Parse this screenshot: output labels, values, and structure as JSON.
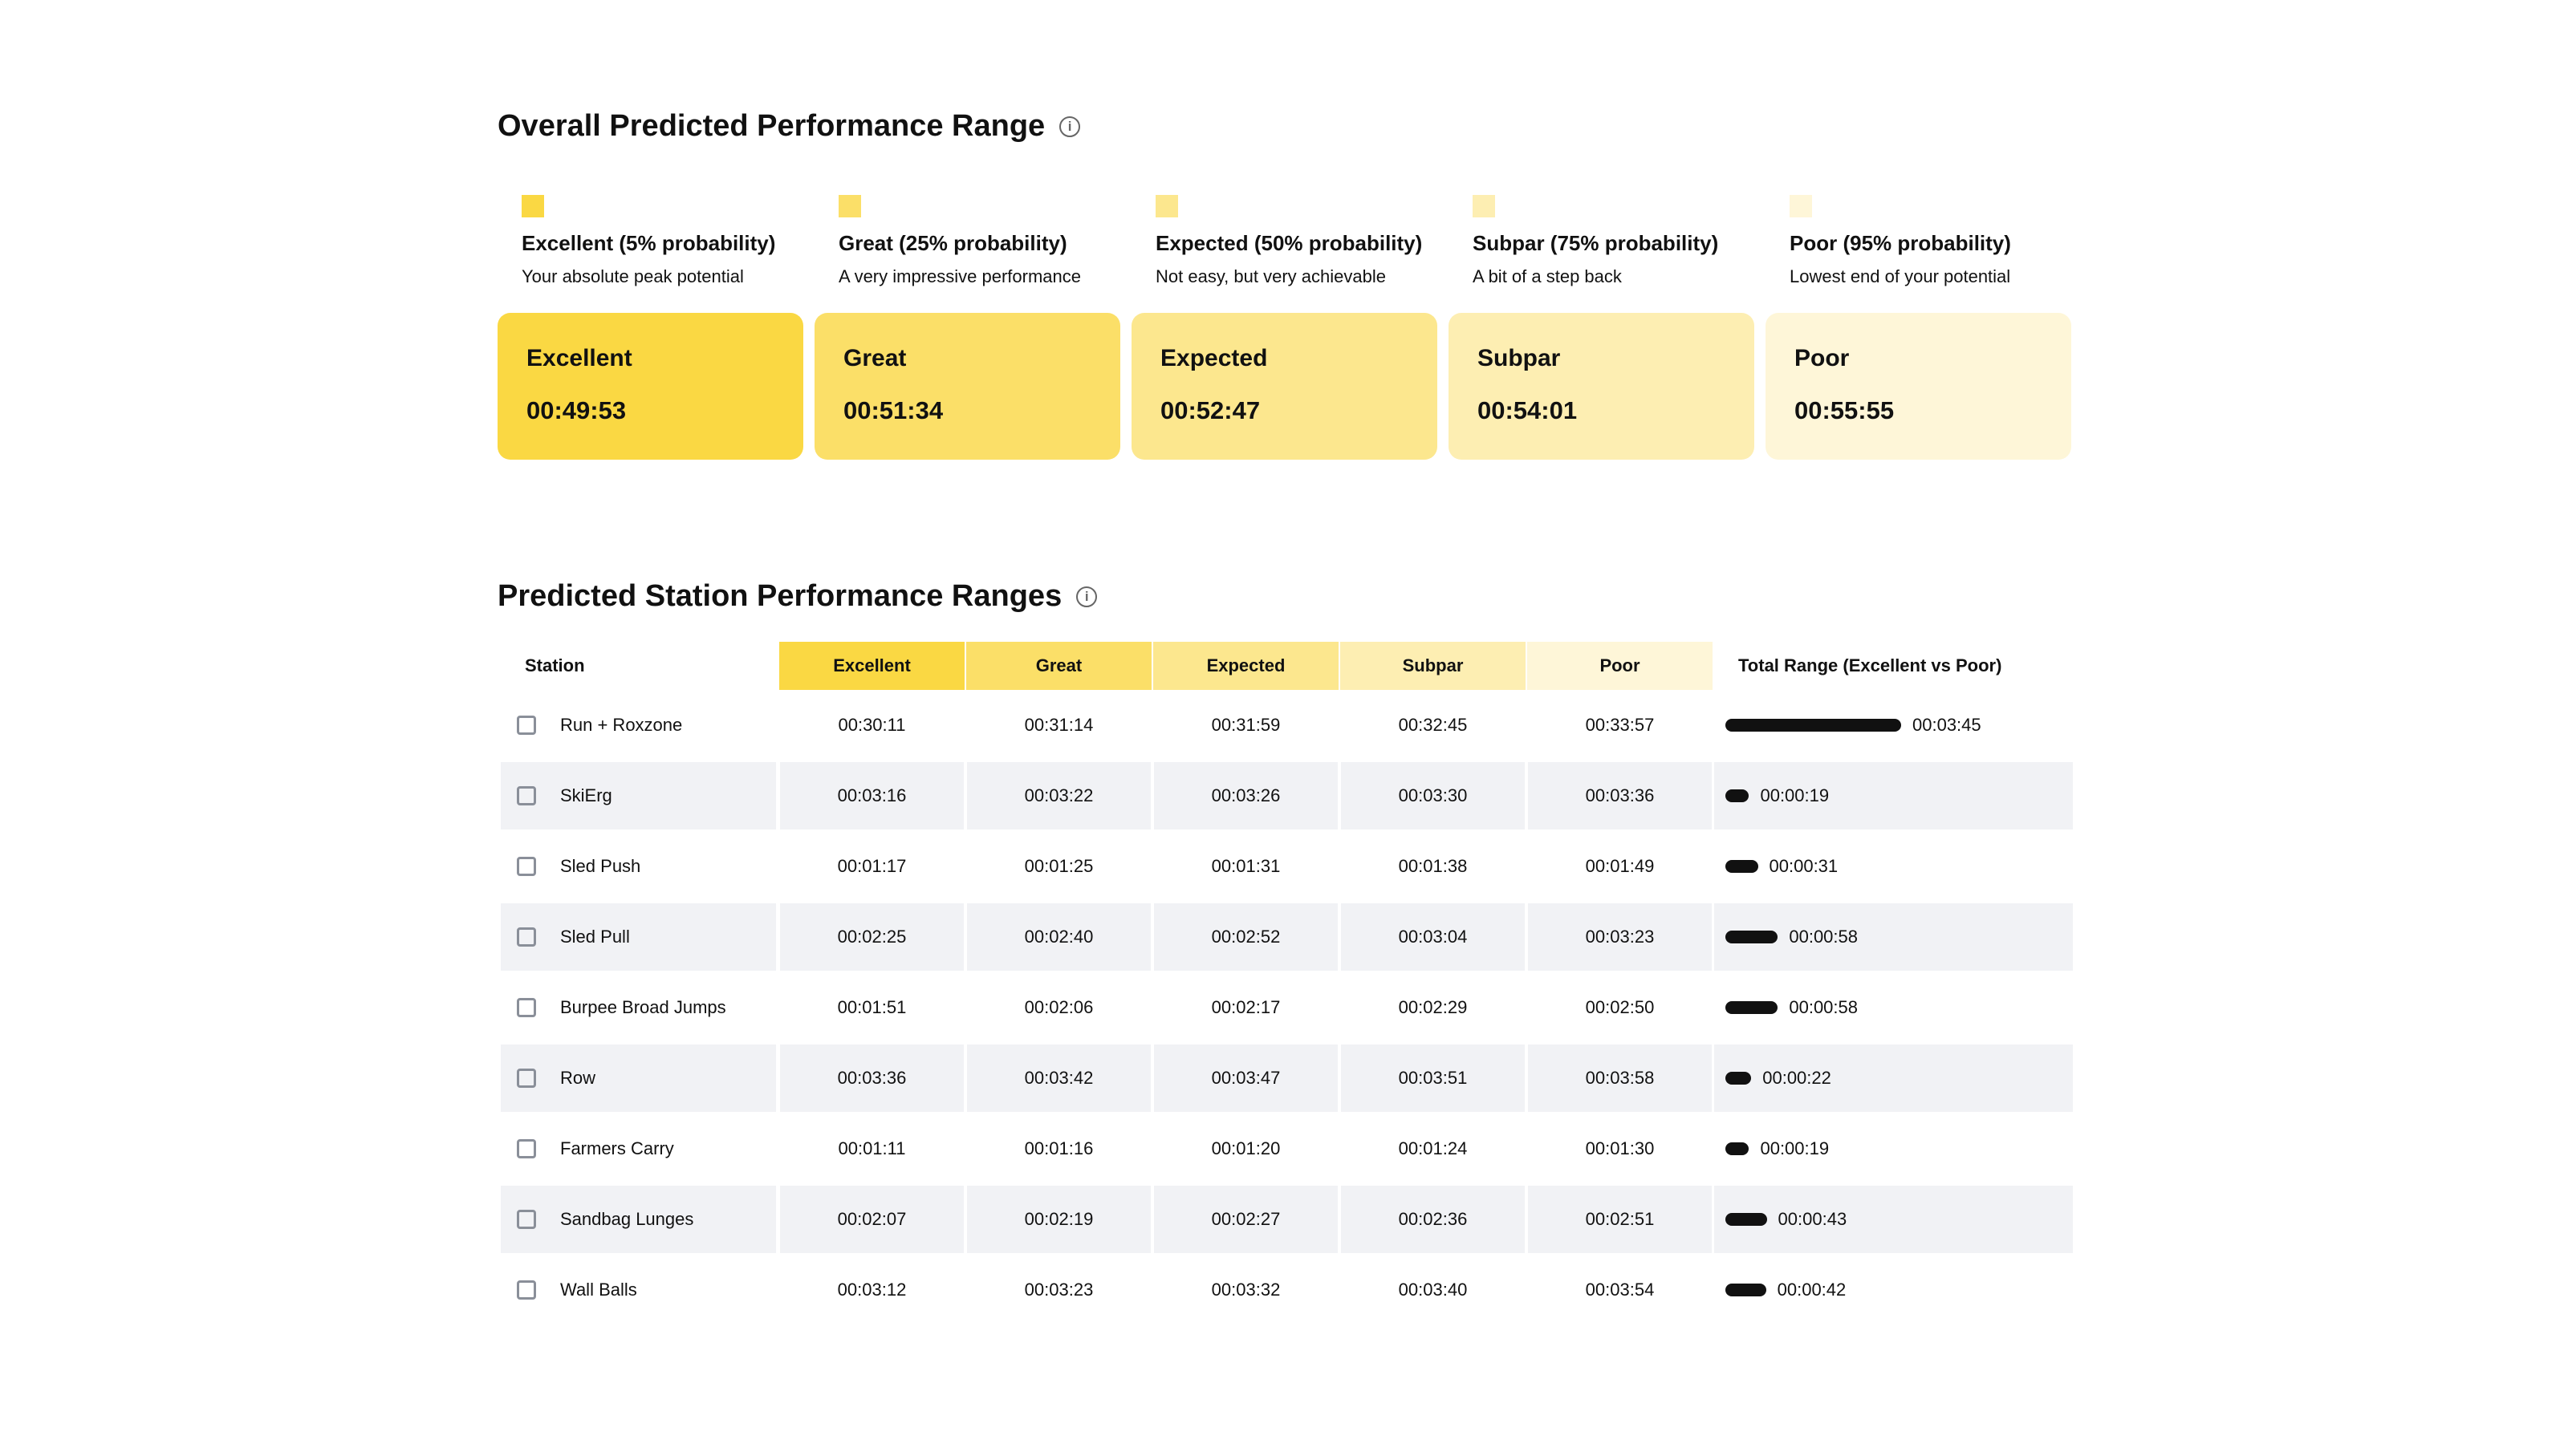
{
  "overall": {
    "title": "Overall Predicted Performance Range",
    "levels": [
      {
        "label": "Excellent (5% probability)",
        "description": "Your absolute peak potential",
        "name": "Excellent",
        "time": "00:49:53",
        "color": "#fad843"
      },
      {
        "label": "Great (25% probability)",
        "description": "A very impressive performance",
        "name": "Great",
        "time": "00:51:34",
        "color": "#fbdf68"
      },
      {
        "label": "Expected (50% probability)",
        "description": "Not easy, but very achievable",
        "name": "Expected",
        "time": "00:52:47",
        "color": "#fce78e"
      },
      {
        "label": "Subpar (75% probability)",
        "description": "A bit of a step back",
        "name": "Subpar",
        "time": "00:54:01",
        "color": "#fdeeb2"
      },
      {
        "label": "Poor (95% probability)",
        "description": "Lowest end of your potential",
        "name": "Poor",
        "time": "00:55:55",
        "color": "#fef6d8"
      }
    ]
  },
  "stations": {
    "title": "Predicted Station Performance Ranges",
    "columns": [
      "Station",
      "Excellent",
      "Great",
      "Expected",
      "Subpar",
      "Poor",
      "Total Range (Excellent vs Poor)"
    ],
    "rows": [
      [
        "Run + Roxzone",
        "00:30:11",
        "00:31:14",
        "00:31:59",
        "00:32:45",
        "00:33:57",
        "00:03:45"
      ],
      [
        "SkiErg",
        "00:03:16",
        "00:03:22",
        "00:03:26",
        "00:03:30",
        "00:03:36",
        "00:00:19"
      ],
      [
        "Sled Push",
        "00:01:17",
        "00:01:25",
        "00:01:31",
        "00:01:38",
        "00:01:49",
        "00:00:31"
      ],
      [
        "Sled Pull",
        "00:02:25",
        "00:02:40",
        "00:02:52",
        "00:03:04",
        "00:03:23",
        "00:00:58"
      ],
      [
        "Burpee Broad Jumps",
        "00:01:51",
        "00:02:06",
        "00:02:17",
        "00:02:29",
        "00:02:50",
        "00:00:58"
      ],
      [
        "Row",
        "00:03:36",
        "00:03:42",
        "00:03:47",
        "00:03:51",
        "00:03:58",
        "00:00:22"
      ],
      [
        "Farmers Carry",
        "00:01:11",
        "00:01:16",
        "00:01:20",
        "00:01:24",
        "00:01:30",
        "00:00:19"
      ],
      [
        "Sandbag Lunges",
        "00:02:07",
        "00:02:19",
        "00:02:27",
        "00:02:36",
        "00:02:51",
        "00:00:43"
      ],
      [
        "Wall Balls",
        "00:03:12",
        "00:03:23",
        "00:03:32",
        "00:03:40",
        "00:03:54",
        "00:00:42"
      ]
    ]
  }
}
